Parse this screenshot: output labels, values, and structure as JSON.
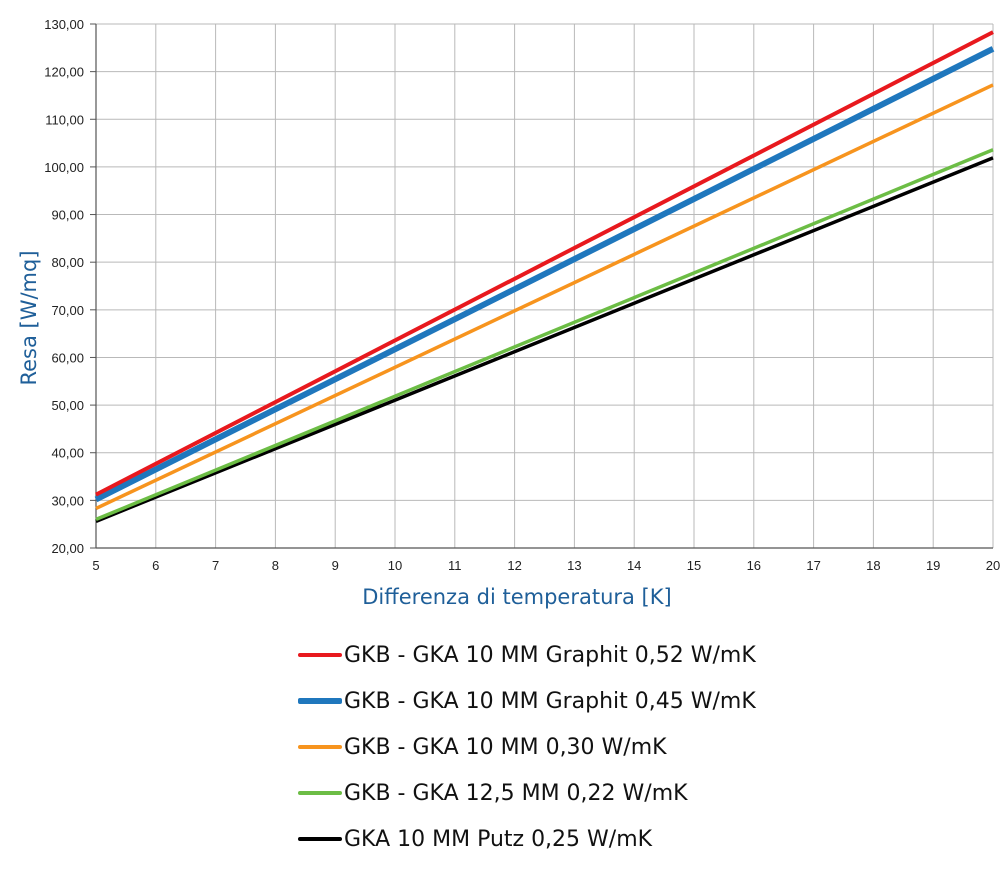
{
  "chart_data": {
    "type": "line",
    "xlabel": "Differenza di temperatura [K]",
    "ylabel": "Resa [W/mq]",
    "xlim": [
      5,
      20
    ],
    "ylim": [
      20,
      130
    ],
    "x_ticks": [
      "5",
      "6",
      "7",
      "8",
      "9",
      "10",
      "11",
      "12",
      "13",
      "14",
      "15",
      "16",
      "17",
      "18",
      "19",
      "20"
    ],
    "y_ticks": [
      "20,00",
      "30,00",
      "40,00",
      "50,00",
      "60,00",
      "70,00",
      "80,00",
      "90,00",
      "100,00",
      "110,00",
      "120,00",
      "130,00"
    ],
    "grid": true,
    "legend_position": "bottom",
    "series": [
      {
        "name": "GKB - GKA 10 MM Graphit 0,52 W/mK",
        "color": "#e8191e",
        "width": 4,
        "x": [
          5,
          20
        ],
        "y": [
          31.2,
          128.3
        ]
      },
      {
        "name": "GKB - GKA 10 MM Graphit 0,45 W/mK",
        "color": "#1f77bd",
        "width": 6,
        "x": [
          5,
          20
        ],
        "y": [
          30.2,
          124.8
        ]
      },
      {
        "name": "GKB - GKA 10 MM 0,30 W/mK",
        "color": "#f7941e",
        "width": 3.5,
        "x": [
          5,
          20
        ],
        "y": [
          28.3,
          117.2
        ]
      },
      {
        "name": "GKB - GKA 12,5 MM 0,22 W/mK",
        "color": "#6cbd45",
        "width": 3.5,
        "x": [
          5,
          20
        ],
        "y": [
          26.0,
          103.6
        ]
      },
      {
        "name": "GKA 10 MM Putz 0,25 W/mK",
        "color": "#000000",
        "width": 3.5,
        "x": [
          5,
          20
        ],
        "y": [
          25.6,
          101.9
        ]
      }
    ]
  }
}
